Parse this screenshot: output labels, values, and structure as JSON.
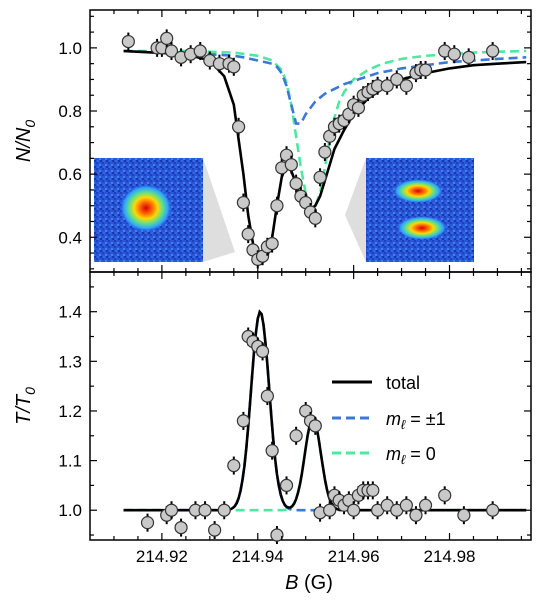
{
  "chart_data": [
    {
      "type": "scatter",
      "panel": "top",
      "ylabel": "N/N₀",
      "ylabel_main": "N/N",
      "ylabel_sub": "0",
      "ylim": [
        0.29,
        1.12
      ],
      "xlim": [
        214.905,
        214.997
      ],
      "yticks": [
        "0.4",
        "0.6",
        "0.8",
        "1.0"
      ],
      "grid": false,
      "data_points": {
        "x": [
          214.913,
          214.919,
          214.92,
          214.921,
          214.922,
          214.924,
          214.926,
          214.928,
          214.93,
          214.932,
          214.934,
          214.935,
          214.936,
          214.937,
          214.938,
          214.939,
          214.94,
          214.941,
          214.942,
          214.943,
          214.944,
          214.945,
          214.946,
          214.947,
          214.948,
          214.949,
          214.95,
          214.951,
          214.952,
          214.953,
          214.954,
          214.955,
          214.956,
          214.957,
          214.958,
          214.959,
          214.96,
          214.961,
          214.962,
          214.963,
          214.964,
          214.965,
          214.967,
          214.969,
          214.971,
          214.973,
          214.974,
          214.975,
          214.979,
          214.981,
          214.984,
          214.989
        ],
        "y": [
          1.02,
          1.0,
          1.0,
          1.03,
          0.99,
          0.97,
          0.98,
          0.99,
          0.96,
          0.95,
          0.95,
          0.94,
          0.75,
          0.51,
          0.41,
          0.36,
          0.33,
          0.34,
          0.37,
          0.38,
          0.5,
          0.62,
          0.66,
          0.63,
          0.57,
          0.53,
          0.51,
          0.48,
          0.46,
          0.59,
          0.67,
          0.72,
          0.75,
          0.76,
          0.77,
          0.79,
          0.82,
          0.81,
          0.85,
          0.86,
          0.87,
          0.88,
          0.88,
          0.9,
          0.88,
          0.92,
          0.93,
          0.93,
          0.99,
          0.98,
          0.97,
          0.99
        ]
      },
      "curves": {
        "total": {
          "x": [
            214.912,
            214.925,
            214.93,
            214.933,
            214.935,
            214.937,
            214.938,
            214.939,
            214.94,
            214.941,
            214.942,
            214.943,
            214.944,
            214.945,
            214.946,
            214.947,
            214.948,
            214.949,
            214.95,
            214.951,
            214.952,
            214.953,
            214.954,
            214.955,
            214.956,
            214.958,
            214.96,
            214.963,
            214.966,
            214.97,
            214.975,
            214.98,
            214.985,
            214.99,
            214.996
          ],
          "y": [
            0.99,
            0.98,
            0.96,
            0.91,
            0.82,
            0.6,
            0.47,
            0.38,
            0.33,
            0.32,
            0.34,
            0.4,
            0.5,
            0.59,
            0.63,
            0.61,
            0.57,
            0.52,
            0.5,
            0.49,
            0.5,
            0.53,
            0.58,
            0.63,
            0.68,
            0.74,
            0.79,
            0.84,
            0.87,
            0.9,
            0.92,
            0.935,
            0.945,
            0.95,
            0.955
          ]
        },
        "m_pm1": {
          "x": [
            214.912,
            214.93,
            214.935,
            214.937,
            214.94,
            214.943,
            214.944,
            214.945,
            214.946,
            214.947,
            214.948,
            214.949,
            214.95,
            214.952,
            214.954,
            214.956,
            214.958,
            214.961,
            214.965,
            214.97,
            214.975,
            214.98,
            214.985,
            214.99,
            214.996
          ],
          "y": [
            0.99,
            0.98,
            0.975,
            0.97,
            0.96,
            0.95,
            0.94,
            0.92,
            0.88,
            0.82,
            0.76,
            0.76,
            0.79,
            0.83,
            0.855,
            0.87,
            0.885,
            0.9,
            0.92,
            0.935,
            0.945,
            0.955,
            0.96,
            0.965,
            0.97
          ]
        },
        "m_0": {
          "x": [
            214.912,
            214.925,
            214.935,
            214.94,
            214.943,
            214.945,
            214.946,
            214.947,
            214.948,
            214.949,
            214.95,
            214.951,
            214.952,
            214.953,
            214.954,
            214.955,
            214.956,
            214.957,
            214.958,
            214.96,
            214.963,
            214.966,
            214.97,
            214.975,
            214.98,
            214.985,
            214.99,
            214.996
          ],
          "y": [
            0.99,
            0.99,
            0.985,
            0.975,
            0.96,
            0.93,
            0.89,
            0.82,
            0.72,
            0.62,
            0.54,
            0.5,
            0.5,
            0.54,
            0.62,
            0.71,
            0.78,
            0.83,
            0.86,
            0.9,
            0.93,
            0.95,
            0.965,
            0.975,
            0.98,
            0.985,
            0.988,
            0.99
          ]
        }
      }
    },
    {
      "type": "scatter",
      "panel": "bottom",
      "ylabel": "T/T₀",
      "ylabel_main": "T/T",
      "ylabel_sub": "0",
      "xlabel": "B (G)",
      "xlabel_var": "B",
      "xlabel_unit": " (G)",
      "ylim": [
        0.94,
        1.48
      ],
      "xlim": [
        214.905,
        214.997
      ],
      "xticks": [
        "214.92",
        "214.94",
        "214.96",
        "214.98"
      ],
      "yticks": [
        "1.0",
        "1.1",
        "1.2",
        "1.3",
        "1.4"
      ],
      "grid": false,
      "legend_position": "right",
      "data_points": {
        "x": [
          214.917,
          214.921,
          214.922,
          214.924,
          214.927,
          214.929,
          214.931,
          214.933,
          214.935,
          214.937,
          214.938,
          214.939,
          214.94,
          214.941,
          214.942,
          214.943,
          214.944,
          214.946,
          214.948,
          214.95,
          214.951,
          214.952,
          214.953,
          214.955,
          214.956,
          214.957,
          214.958,
          214.959,
          214.96,
          214.961,
          214.962,
          214.963,
          214.964,
          214.965,
          214.967,
          214.969,
          214.971,
          214.973,
          214.975,
          214.979,
          214.983,
          214.989
        ],
        "y": [
          0.975,
          0.99,
          1.0,
          0.965,
          1.0,
          1.0,
          0.96,
          1.0,
          1.09,
          1.18,
          1.35,
          1.34,
          1.33,
          1.32,
          1.23,
          1.12,
          0.95,
          1.05,
          1.15,
          1.2,
          1.18,
          1.17,
          0.995,
          1.0,
          1.03,
          1.02,
          1.01,
          1.02,
          1.0,
          1.03,
          1.04,
          1.04,
          1.04,
          1.0,
          1.01,
          1.0,
          1.01,
          0.99,
          1.01,
          1.03,
          0.99,
          1.0
        ]
      },
      "curves": {
        "total": {
          "baseline": 1.0,
          "peaks": [
            {
              "center": 214.9405,
              "height": 0.4,
              "sigma": 0.0019
            },
            {
              "center": 214.9515,
              "height": 0.185,
              "sigma": 0.0017
            }
          ]
        },
        "m_pm1": {
          "baseline": 1.0,
          "peaks": [
            {
              "center": 214.9405,
              "height": 0.4,
              "sigma": 0.0019
            }
          ]
        },
        "m_0": {
          "baseline": 1.0,
          "peaks": [
            {
              "center": 214.9515,
              "height": 0.185,
              "sigma": 0.0017
            }
          ]
        }
      }
    }
  ],
  "legend": {
    "total": "total",
    "m_pm1_prefix": "m",
    "m_pm1_sub": "ℓ",
    "m_pm1_suffix": " = ±1",
    "m_0_prefix": "m",
    "m_0_sub": "ℓ",
    "m_0_suffix": " = 0"
  },
  "colors": {
    "total": "#000000",
    "m_pm1": "#3b78d8",
    "m_0": "#4ee8a0",
    "marker_fill": "#c9c9c9",
    "marker_stroke": "#333333"
  },
  "insets": {
    "left_icon": "single-cloud-absorption-image",
    "right_icon": "double-cloud-absorption-image"
  }
}
